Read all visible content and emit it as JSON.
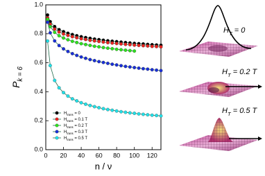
{
  "chart_data": {
    "type": "scatter",
    "x_label": "n / ν",
    "y_label": "P_{k = 6}",
    "xlim": [
      0,
      130
    ],
    "xticks": [
      0,
      20,
      40,
      60,
      80,
      100,
      120
    ],
    "ylim": [
      0,
      1
    ],
    "yticks": [
      {
        "value": 0,
        "label": "0.0"
      },
      0.2,
      0.4,
      0.6,
      0.8,
      {
        "value": 1,
        "label": "1.0"
      }
    ],
    "x": [
      2,
      5,
      10,
      15,
      20,
      25,
      30,
      35,
      40,
      45,
      50,
      55,
      60,
      65,
      70,
      75,
      80,
      85,
      90,
      95,
      100,
      105,
      110,
      115,
      120,
      125,
      130
    ],
    "fit_color": "#1f6b4a",
    "legend": "lower left",
    "series": [
      {
        "name": "H_trans = 0",
        "color": "#000000",
        "values": [
          0.93,
          0.884,
          0.85,
          0.829,
          0.815,
          0.804,
          0.795,
          0.787,
          0.78,
          0.774,
          0.769,
          0.764,
          0.76,
          0.756,
          0.752,
          0.749,
          0.746,
          0.743,
          0.74,
          0.737,
          0.734,
          0.732,
          0.73,
          0.727,
          0.725,
          0.723,
          0.721
        ]
      },
      {
        "name": "H_trans = 0.1 T",
        "color": "#e8231f",
        "values": [
          0.91,
          0.866,
          0.833,
          0.813,
          0.799,
          0.789,
          0.78,
          0.773,
          0.766,
          0.761,
          0.755,
          0.751,
          0.747,
          0.743,
          0.739,
          0.736,
          0.733,
          0.73,
          0.727,
          0.725,
          0.722,
          0.72,
          0.718,
          0.716,
          0.713,
          0.712,
          0.71
        ]
      },
      {
        "name": "H_trans = 0.2 T",
        "color": "#2ee01e",
        "values": [
          0.9,
          0.849,
          0.81,
          0.787,
          0.771,
          0.759,
          0.748,
          0.74,
          0.732,
          0.726,
          0.72,
          0.714,
          0.71,
          0.705,
          0.701,
          0.697,
          0.693,
          0.69,
          0.687,
          0.684,
          0.681,
          null,
          null,
          null,
          null,
          null,
          null
        ]
      },
      {
        "name": "H_trans = 0.3 T",
        "color": "#1a2fd6",
        "values": [
          0.88,
          0.807,
          0.751,
          0.719,
          0.696,
          0.678,
          0.663,
          0.651,
          0.64,
          0.631,
          0.622,
          0.615,
          0.608,
          0.602,
          0.596,
          0.59,
          0.585,
          0.58,
          0.575,
          0.571,
          0.567,
          0.563,
          0.559,
          0.556,
          0.552,
          0.549,
          0.546
        ]
      },
      {
        "name": "H_trans = 0.5 T",
        "color": "#22e0e8",
        "values": [
          0.75,
          0.581,
          0.478,
          0.427,
          0.394,
          0.37,
          0.351,
          0.337,
          0.324,
          0.314,
          0.305,
          0.297,
          0.29,
          0.283,
          0.277,
          0.272,
          0.267,
          0.262,
          0.258,
          0.254,
          0.251,
          0.247,
          0.244,
          0.241,
          0.238,
          0.236,
          0.233
        ]
      }
    ],
    "annotations": [
      "H_T = 0",
      "H_T = 0.2 T",
      "H_T = 0.5 T"
    ]
  }
}
